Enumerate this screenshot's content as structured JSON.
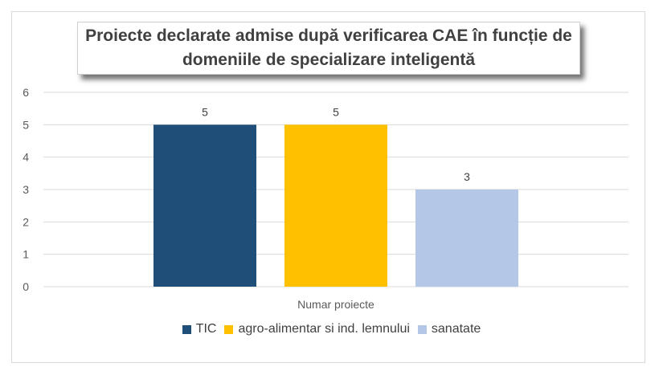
{
  "chart_data": {
    "type": "bar",
    "title": "Proiecte declarate admise după verificarea CAE în funcție de domeniile de specializare inteligentă",
    "categories": [
      "Numar proiecte"
    ],
    "xlabel": "",
    "ylabel": "",
    "ylim": [
      0,
      6
    ],
    "yticks": [
      0,
      1,
      2,
      3,
      4,
      5,
      6
    ],
    "grid": true,
    "legend_position": "bottom",
    "series": [
      {
        "name": "TIC",
        "values": [
          5
        ],
        "color": "#1f4e79"
      },
      {
        "name": "agro-alimentar si ind. lemnului",
        "values": [
          5
        ],
        "color": "#ffc000"
      },
      {
        "name": "sanatate",
        "values": [
          3
        ],
        "color": "#b4c7e7"
      }
    ]
  }
}
